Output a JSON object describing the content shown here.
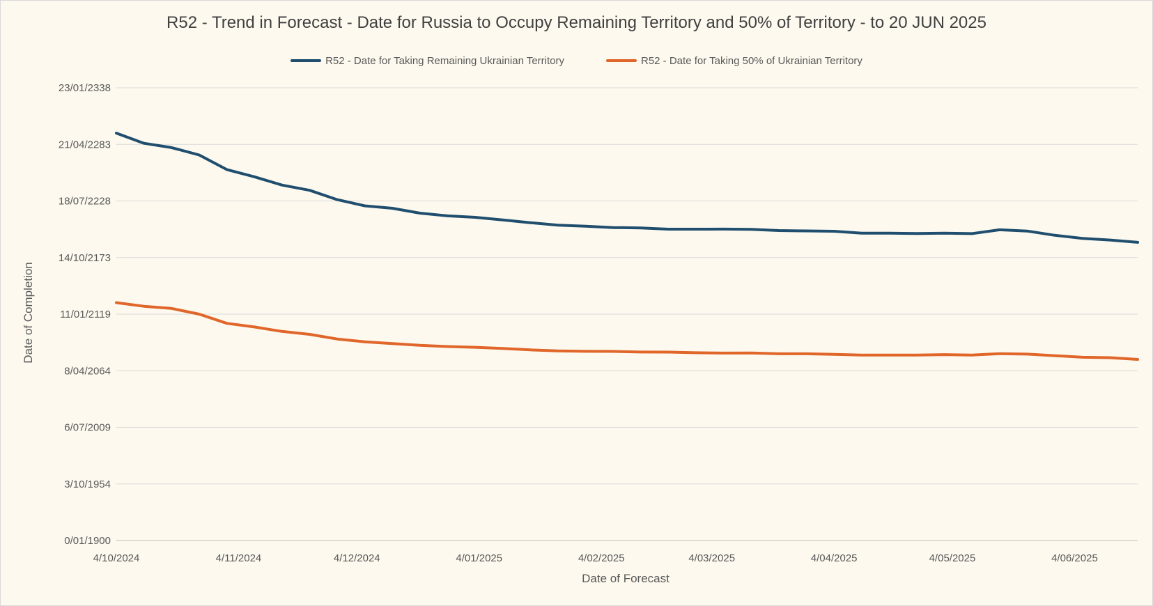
{
  "chart_data": {
    "type": "line",
    "title": "R52 - Trend in Forecast - Date for Russia to Occupy Remaining Territory and 50% of Territory - to 20 JUN 2025",
    "xlabel": "Date of Forecast",
    "ylabel": "Date of Completion",
    "x_ticks": [
      "4/10/2024",
      "4/11/2024",
      "4/12/2024",
      "4/01/2025",
      "4/02/2025",
      "4/03/2025",
      "4/04/2025",
      "4/05/2025",
      "4/06/2025"
    ],
    "y_ticks": [
      "0/01/1900",
      "3/10/1954",
      "6/07/2009",
      "8/04/2064",
      "11/01/2119",
      "14/10/2173",
      "18/07/2228",
      "21/04/2283",
      "23/01/2338"
    ],
    "xlim": [
      "4/10/2024",
      "20/06/2025"
    ],
    "ylim": [
      "0/01/1900",
      "23/01/2338"
    ],
    "grid": "horizontal",
    "legend_position": "top-center",
    "x": [
      "4/10/2024",
      "11/10/2024",
      "18/10/2024",
      "25/10/2024",
      "1/11/2024",
      "8/11/2024",
      "15/11/2024",
      "22/11/2024",
      "29/11/2024",
      "6/12/2024",
      "13/12/2024",
      "20/12/2024",
      "27/12/2024",
      "3/01/2025",
      "10/01/2025",
      "17/01/2025",
      "24/01/2025",
      "31/01/2025",
      "7/02/2025",
      "14/02/2025",
      "21/02/2025",
      "28/02/2025",
      "7/03/2025",
      "14/03/2025",
      "21/03/2025",
      "28/03/2025",
      "4/04/2025",
      "11/04/2025",
      "18/04/2025",
      "25/04/2025",
      "2/05/2025",
      "9/05/2025",
      "16/05/2025",
      "23/05/2025",
      "30/05/2025",
      "6/06/2025",
      "13/06/2025",
      "20/06/2025"
    ],
    "series": [
      {
        "name": "R52 - Date for Taking Remaining Ukrainian Territory",
        "color": "#1f4e6e",
        "values": [
          "15/03/2294",
          "18/05/2284",
          "12/03/2280",
          "21/01/2273",
          "9/12/2258",
          "2/12/2251",
          "27/11/2243",
          "2/11/2238",
          "9/11/2229",
          "31/10/2223",
          "17/06/2221",
          "4/10/2216",
          "22/02/2214",
          "25/09/2212",
          "27/02/2210",
          "19/07/2207",
          "6/02/2205",
          "22/01/2204",
          "21/10/2202",
          "26/06/2202",
          "10/04/2201",
          "2/04/2201",
          "27/04/2201",
          "30/01/2201",
          "19/11/2199",
          "21/07/2199",
          "5/04/2199",
          "2/05/2197",
          "3/05/2197",
          "22/12/2196",
          "27/04/2197",
          "11/12/2196",
          "2/09/2200",
          "4/06/2199",
          "25/04/2195",
          "19/05/2192",
          "4/10/2190",
          "29/06/2188"
        ]
      },
      {
        "name": "R52 - Date for Taking  50% of Ukrainian Territory",
        "color": "#e0662a",
        "values": [
          "1/03/2130",
          "4/09/2126",
          "21/07/2124",
          "6/01/2119",
          "21/02/2110",
          "15/08/2106",
          "29/04/2102",
          "22/06/2099",
          "17/12/2094",
          "1/04/2092",
          "28/07/2090",
          "2/11/2088",
          "12/09/2087",
          "5/12/2086",
          "6/11/2085",
          "6/06/2084",
          "10/06/2083",
          "13/01/2083",
          "19/12/2082",
          "16/05/2082",
          "23/04/2082",
          "2/09/2081",
          "13/05/2081",
          "25/05/2081",
          "12/09/2080",
          "25/08/2080",
          "18/01/2080",
          "27/05/2079",
          "9/06/2079",
          "21/06/2079",
          "12/11/2079",
          "2/07/2079",
          "22/09/2080",
          "6/05/2080",
          "20/11/2078",
          "28/04/2077",
          "15/11/2076",
          "19/03/2075"
        ]
      }
    ]
  }
}
